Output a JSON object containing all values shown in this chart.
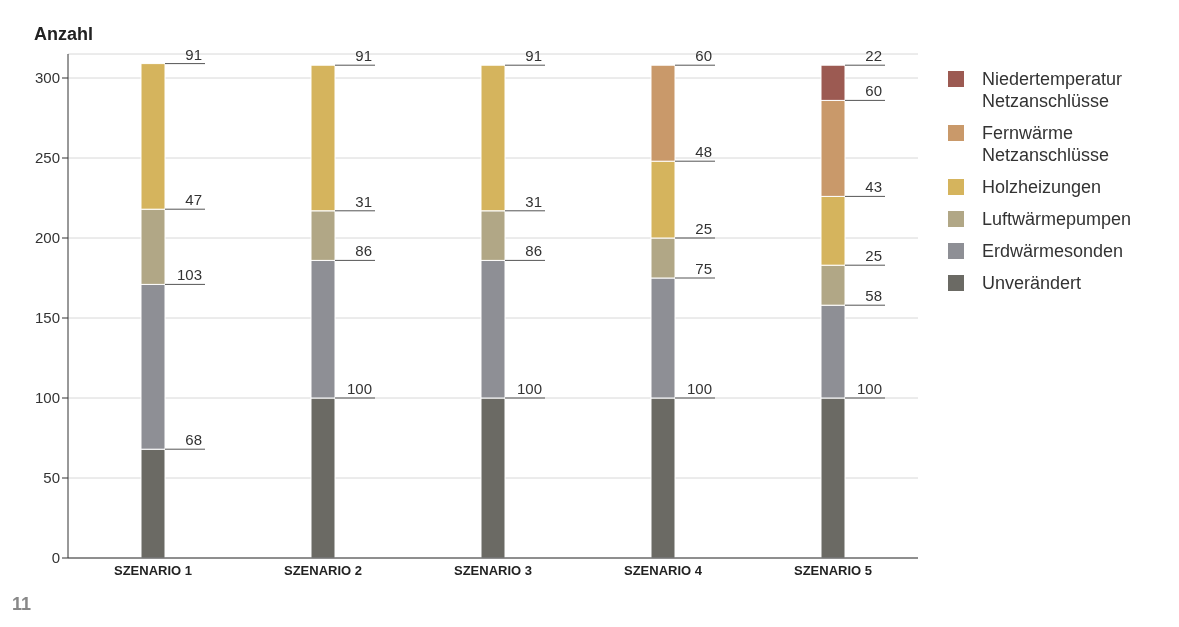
{
  "chart_data": {
    "type": "bar",
    "ylabel": "Anzahl",
    "categories": [
      "SZENARIO 1",
      "SZENARIO 2",
      "SZENARIO 3",
      "SZENARIO 4",
      "SZENARIO 5"
    ],
    "series": [
      {
        "name": "Unverändert",
        "color": "#6b6a64",
        "values": [
          68,
          100,
          100,
          100,
          100
        ]
      },
      {
        "name": "Erdwärmesonden",
        "color": "#8e8f95",
        "values": [
          103,
          86,
          86,
          75,
          58
        ]
      },
      {
        "name": "Luftwärmepumpen",
        "color": "#b1a786",
        "values": [
          47,
          31,
          31,
          25,
          25
        ]
      },
      {
        "name": "Holzheizungen",
        "color": "#d5b45d",
        "values": [
          91,
          91,
          91,
          48,
          43
        ]
      },
      {
        "name": "Fernwärme Netzanschlüsse",
        "color": "#c9996a",
        "values": [
          null,
          null,
          null,
          60,
          60
        ]
      },
      {
        "name": "Niedertemperatur Netzanschlüsse",
        "color": "#9c5a52",
        "values": [
          null,
          null,
          null,
          null,
          22
        ]
      }
    ],
    "stacked": true,
    "ylim": [
      0,
      315
    ],
    "yticks": [
      0,
      50,
      100,
      150,
      200,
      250,
      300
    ],
    "grid": "y",
    "legend": "right",
    "data_labels": true,
    "annotations": [
      "11"
    ]
  }
}
